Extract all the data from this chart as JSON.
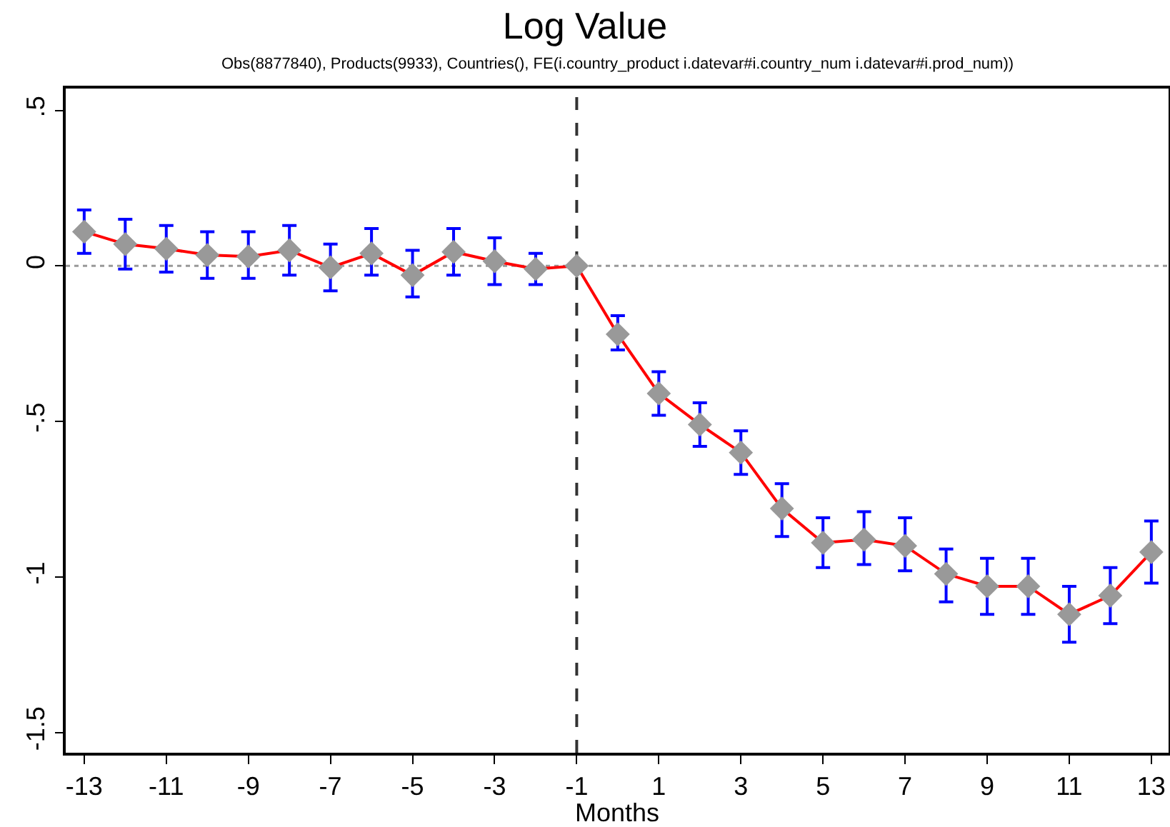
{
  "chart_data": {
    "type": "line",
    "title": "Log Value",
    "subtitle": "Obs(8877840), Products(9933), Countries(), FE(i.country_product i.datevar#i.country_num i.datevar#i.prod_num))",
    "xlabel": "Months",
    "x": [
      -13,
      -12,
      -11,
      -10,
      -9,
      -8,
      -7,
      -6,
      -5,
      -4,
      -3,
      -2,
      -1,
      0,
      1,
      2,
      3,
      4,
      5,
      6,
      7,
      8,
      9,
      10,
      11,
      12,
      13
    ],
    "series": [
      {
        "color": "#ff0000",
        "values": [
          0.11,
          0.07,
          0.055,
          0.035,
          0.03,
          0.05,
          -0.005,
          0.04,
          -0.03,
          0.045,
          0.015,
          -0.01,
          0,
          -0.22,
          -0.41,
          -0.51,
          -0.6,
          -0.78,
          -0.89,
          -0.88,
          -0.9,
          -0.99,
          -1.03,
          -1.03,
          -1.12,
          -1.06,
          -0.92
        ],
        "errors": [
          [
            0.04,
            0.18
          ],
          [
            -0.01,
            0.15
          ],
          [
            -0.02,
            0.13
          ],
          [
            -0.04,
            0.11
          ],
          [
            -0.04,
            0.11
          ],
          [
            -0.03,
            0.13
          ],
          [
            -0.08,
            0.07
          ],
          [
            -0.03,
            0.12
          ],
          [
            -0.1,
            0.05
          ],
          [
            -0.03,
            0.12
          ],
          [
            -0.06,
            0.09
          ],
          [
            -0.06,
            0.04
          ],
          null,
          [
            -0.27,
            -0.16
          ],
          [
            -0.48,
            -0.34
          ],
          [
            -0.58,
            -0.44
          ],
          [
            -0.67,
            -0.53
          ],
          [
            -0.87,
            -0.7
          ],
          [
            -0.97,
            -0.81
          ],
          [
            -0.96,
            -0.79
          ],
          [
            -0.98,
            -0.81
          ],
          [
            -1.08,
            -0.91
          ],
          [
            -1.12,
            -0.94
          ],
          [
            -1.12,
            -0.94
          ],
          [
            -1.21,
            -1.03
          ],
          [
            -1.15,
            -0.97
          ],
          [
            -1.02,
            -0.82
          ]
        ]
      }
    ],
    "marker": "diamond",
    "line_style": "solid",
    "grid": false,
    "xlim": [
      -13.45,
      13.42
    ],
    "xticks": [
      -13,
      -11,
      -9,
      -7,
      -5,
      -3,
      -1,
      1,
      3,
      5,
      7,
      9,
      11,
      13
    ],
    "ylim": [
      -1.565,
      0.57
    ],
    "yticks": [
      {
        "value": -1.5,
        "label": "-1.5"
      },
      {
        "value": -1,
        "label": "-1"
      },
      {
        "value": -0.5,
        "label": "-.5"
      },
      {
        "value": 0,
        "label": "0"
      },
      {
        "value": 0.5,
        "label": ".5"
      }
    ],
    "ref_lines": [
      {
        "axis": "x",
        "value": -1,
        "color": "#333333",
        "line_style": "dashed"
      },
      {
        "axis": "y",
        "value": 0,
        "color": "#999999",
        "line_style": "dotted"
      }
    ]
  }
}
